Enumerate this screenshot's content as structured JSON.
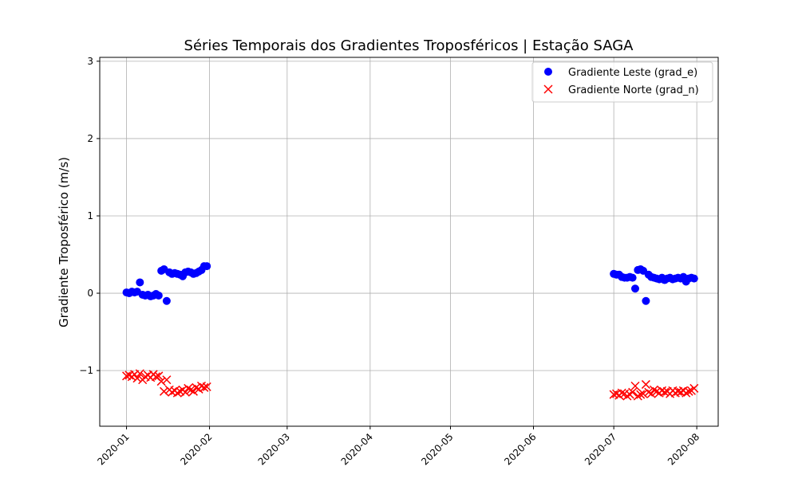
{
  "chart_data": {
    "type": "scatter",
    "title": "Séries Temporais dos Gradientes Troposféricos | Estação SAGA",
    "xlabel": "",
    "ylabel": "Gradiente Troposférico (m/s)",
    "xlim": [
      "2019-12-22",
      "2020-08-09"
    ],
    "ylim": [
      -1.72,
      3.05
    ],
    "x_ticks": [
      "2020-01-01",
      "2020-02-01",
      "2020-03-01",
      "2020-04-01",
      "2020-05-01",
      "2020-06-01",
      "2020-07-01",
      "2020-08-01"
    ],
    "x_tick_labels": [
      "2020-01",
      "2020-02",
      "2020-03",
      "2020-04",
      "2020-05",
      "2020-06",
      "2020-07",
      "2020-08"
    ],
    "y_ticks": [
      -1,
      0,
      1,
      2,
      3
    ],
    "y_tick_labels": [
      "−1",
      "0",
      "1",
      "2",
      "3"
    ],
    "grid": true,
    "legend_position": "top-right",
    "series": [
      {
        "name": "Gradiente Leste (grad_e)",
        "marker": "circle",
        "color": "#0000ff",
        "x": [
          "2020-01-01",
          "2020-01-02",
          "2020-01-03",
          "2020-01-04",
          "2020-01-05",
          "2020-01-06",
          "2020-01-07",
          "2020-01-08",
          "2020-01-09",
          "2020-01-10",
          "2020-01-11",
          "2020-01-12",
          "2020-01-13",
          "2020-01-14",
          "2020-01-15",
          "2020-01-16",
          "2020-01-17",
          "2020-01-18",
          "2020-01-19",
          "2020-01-20",
          "2020-01-21",
          "2020-01-22",
          "2020-01-23",
          "2020-01-24",
          "2020-01-25",
          "2020-01-26",
          "2020-01-27",
          "2020-01-28",
          "2020-01-29",
          "2020-01-30",
          "2020-01-31",
          "2020-07-01",
          "2020-07-02",
          "2020-07-03",
          "2020-07-04",
          "2020-07-05",
          "2020-07-06",
          "2020-07-07",
          "2020-07-08",
          "2020-07-09",
          "2020-07-10",
          "2020-07-11",
          "2020-07-12",
          "2020-07-13",
          "2020-07-14",
          "2020-07-15",
          "2020-07-16",
          "2020-07-17",
          "2020-07-18",
          "2020-07-19",
          "2020-07-20",
          "2020-07-21",
          "2020-07-22",
          "2020-07-23",
          "2020-07-24",
          "2020-07-25",
          "2020-07-26",
          "2020-07-27",
          "2020-07-28",
          "2020-07-29",
          "2020-07-30",
          "2020-07-31"
        ],
        "y": [
          0.01,
          0.0,
          0.02,
          0.01,
          0.02,
          0.14,
          -0.02,
          -0.03,
          -0.02,
          -0.04,
          -0.03,
          -0.01,
          -0.03,
          0.29,
          0.31,
          -0.1,
          0.27,
          0.25,
          0.26,
          0.25,
          0.24,
          0.22,
          0.27,
          0.28,
          0.27,
          0.25,
          0.26,
          0.28,
          0.3,
          0.35,
          0.35,
          0.25,
          0.24,
          0.24,
          0.21,
          0.2,
          0.2,
          0.21,
          0.2,
          0.06,
          0.3,
          0.31,
          0.29,
          -0.1,
          0.24,
          0.21,
          0.2,
          0.19,
          0.18,
          0.2,
          0.17,
          0.19,
          0.2,
          0.18,
          0.19,
          0.2,
          0.19,
          0.21,
          0.15,
          0.19,
          0.2,
          0.19
        ]
      },
      {
        "name": "Gradiente Norte (grad_n)",
        "marker": "x",
        "color": "#ff0000",
        "x": [
          "2020-01-01",
          "2020-01-02",
          "2020-01-03",
          "2020-01-04",
          "2020-01-05",
          "2020-01-06",
          "2020-01-07",
          "2020-01-08",
          "2020-01-09",
          "2020-01-10",
          "2020-01-11",
          "2020-01-12",
          "2020-01-13",
          "2020-01-14",
          "2020-01-15",
          "2020-01-16",
          "2020-01-17",
          "2020-01-18",
          "2020-01-19",
          "2020-01-20",
          "2020-01-21",
          "2020-01-22",
          "2020-01-23",
          "2020-01-24",
          "2020-01-25",
          "2020-01-26",
          "2020-01-27",
          "2020-01-28",
          "2020-01-29",
          "2020-01-30",
          "2020-01-31",
          "2020-07-01",
          "2020-07-02",
          "2020-07-03",
          "2020-07-04",
          "2020-07-05",
          "2020-07-06",
          "2020-07-07",
          "2020-07-08",
          "2020-07-09",
          "2020-07-10",
          "2020-07-11",
          "2020-07-12",
          "2020-07-13",
          "2020-07-14",
          "2020-07-15",
          "2020-07-16",
          "2020-07-17",
          "2020-07-18",
          "2020-07-19",
          "2020-07-20",
          "2020-07-21",
          "2020-07-22",
          "2020-07-23",
          "2020-07-24",
          "2020-07-25",
          "2020-07-26",
          "2020-07-27",
          "2020-07-28",
          "2020-07-29",
          "2020-07-30",
          "2020-07-31"
        ],
        "y": [
          -1.07,
          -1.06,
          -1.08,
          -1.05,
          -1.1,
          -1.04,
          -1.12,
          -1.08,
          -1.06,
          -1.09,
          -1.05,
          -1.08,
          -1.07,
          -1.14,
          -1.27,
          -1.12,
          -1.25,
          -1.28,
          -1.26,
          -1.29,
          -1.27,
          -1.25,
          -1.28,
          -1.23,
          -1.25,
          -1.27,
          -1.22,
          -1.24,
          -1.2,
          -1.22,
          -1.21,
          -1.31,
          -1.3,
          -1.32,
          -1.29,
          -1.3,
          -1.33,
          -1.31,
          -1.28,
          -1.2,
          -1.33,
          -1.31,
          -1.3,
          -1.18,
          -1.28,
          -1.3,
          -1.25,
          -1.27,
          -1.29,
          -1.26,
          -1.28,
          -1.27,
          -1.3,
          -1.26,
          -1.29,
          -1.27,
          -1.28,
          -1.26,
          -1.29,
          -1.27,
          -1.26,
          -1.23
        ]
      }
    ]
  }
}
